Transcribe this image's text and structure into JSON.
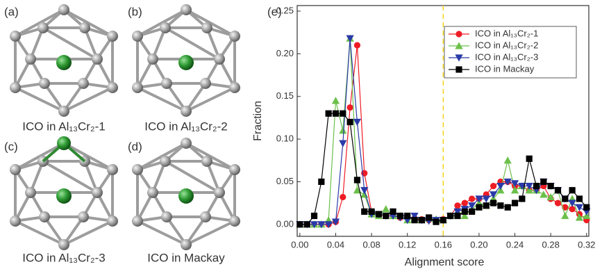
{
  "panels": [
    {
      "label": "(a)",
      "caption": "ICO in Al₁₃Cr₂-1"
    },
    {
      "label": "(b)",
      "caption": "ICO in Al₁₃Cr₂-2"
    },
    {
      "label": "(c)",
      "caption": "ICO in Al₁₃Cr₂-3"
    },
    {
      "label": "(d)",
      "caption": "ICO in Mackay"
    }
  ],
  "chart_data": {
    "type": "line",
    "panel_label": "(e)",
    "xlabel": "Alignment score",
    "ylabel": "Fraction",
    "x": [
      0,
      0.008,
      0.016,
      0.024,
      0.032,
      0.04,
      0.048,
      0.056,
      0.064,
      0.072,
      0.08,
      0.088,
      0.096,
      0.104,
      0.112,
      0.12,
      0.128,
      0.136,
      0.144,
      0.152,
      0.16,
      0.168,
      0.176,
      0.184,
      0.192,
      0.2,
      0.208,
      0.216,
      0.224,
      0.232,
      0.24,
      0.248,
      0.256,
      0.264,
      0.272,
      0.28,
      0.288,
      0.296,
      0.304,
      0.312,
      0.32
    ],
    "series": [
      {
        "name": "ICO in Al₁₃Cr₂-1",
        "color": "#ee1c24",
        "marker": "circle",
        "values": [
          0,
          0,
          0,
          0,
          0,
          0.003,
          0.032,
          0.137,
          0.21,
          0.06,
          0.015,
          0.012,
          0.01,
          0.01,
          0.008,
          0.008,
          0.007,
          0.006,
          0.005,
          0.005,
          0.006,
          0.01,
          0.022,
          0.025,
          0.03,
          0.03,
          0.035,
          0.045,
          0.05,
          0.05,
          0.045,
          0.045,
          0.04,
          0.04,
          0.045,
          0.03,
          0.025,
          0.02,
          0.018,
          0.012,
          0.005
        ]
      },
      {
        "name": "ICO in Al₁₃Cr₂-2",
        "color": "#6cc04a",
        "marker": "triangle-up",
        "values": [
          0,
          0,
          0,
          0,
          0.005,
          0.145,
          0.11,
          0.218,
          0.04,
          0.035,
          0.012,
          0.01,
          0.018,
          0.01,
          0.01,
          0.005,
          0.006,
          0.005,
          0.007,
          0.006,
          0.005,
          0.01,
          0.015,
          0.01,
          0.018,
          0.025,
          0.022,
          0.03,
          0.04,
          0.075,
          0.04,
          0.045,
          0.04,
          0.04,
          0.035,
          0.032,
          0.04,
          0.01,
          0.03,
          0.008,
          0.01
        ]
      },
      {
        "name": "ICO in Al₁₃Cr₂-3",
        "color": "#2a3aa8",
        "marker": "triangle-down",
        "values": [
          0,
          0,
          0,
          0,
          0,
          0.003,
          0.095,
          0.218,
          0.12,
          0.04,
          0.012,
          0.012,
          0.01,
          0.01,
          0.008,
          0.005,
          0.01,
          0.005,
          0.004,
          0.005,
          0.005,
          0.01,
          0.015,
          0.018,
          0.022,
          0.03,
          0.03,
          0.035,
          0.045,
          0.05,
          0.048,
          0.045,
          0.045,
          0.04,
          0.05,
          0.045,
          0.04,
          0.03,
          0.025,
          0.02,
          0.015
        ]
      },
      {
        "name": "ICO in Mackay",
        "color": "#000000",
        "marker": "square",
        "values": [
          0,
          0,
          0.01,
          0.05,
          0.13,
          0.13,
          0.13,
          0.12,
          0.052,
          0.015,
          0.015,
          0.012,
          0.01,
          0.015,
          0.01,
          0.01,
          0.005,
          0.005,
          0.008,
          0.003,
          0.005,
          0.01,
          0.01,
          0.015,
          0.015,
          0.02,
          0.022,
          0.025,
          0.022,
          0.02,
          0.025,
          0.03,
          0.077,
          0.045,
          0.05,
          0.045,
          0.04,
          0.03,
          0.04,
          0.03,
          0.02
        ]
      }
    ],
    "xlim": [
      -0.003,
      0.3225
    ],
    "ylim": [
      -0.014,
      0.2565
    ],
    "xticks": [
      {
        "value": 0,
        "label": "0.00"
      },
      {
        "value": 0.04,
        "label": "0.04"
      },
      {
        "value": 0.08,
        "label": "0.08"
      },
      {
        "value": 0.12,
        "label": "0.12"
      },
      {
        "value": 0.16,
        "label": "0.16"
      },
      {
        "value": 0.2,
        "label": "0.20"
      },
      {
        "value": 0.24,
        "label": "0.24"
      },
      {
        "value": 0.28,
        "label": "0.28"
      },
      {
        "value": 0.32,
        "label": "0.32"
      }
    ],
    "yticks": [
      {
        "value": 0,
        "label": "0.00"
      },
      {
        "value": 0.05,
        "label": "0.05"
      },
      {
        "value": 0.1,
        "label": "0.10"
      },
      {
        "value": 0.15,
        "label": "0.15"
      },
      {
        "value": 0.2,
        "label": "0.20"
      },
      {
        "value": 0.25,
        "label": "0.25"
      }
    ],
    "vline": {
      "x": 0.16,
      "color": "#f2d21b"
    },
    "legend": "upper right",
    "grid": false
  }
}
